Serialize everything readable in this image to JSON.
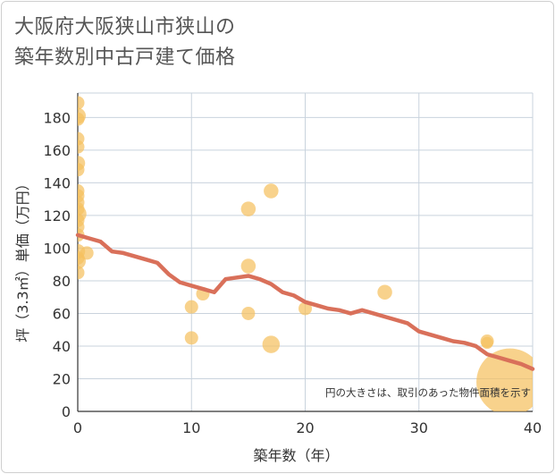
{
  "title": {
    "line1": "大阪府大阪狭山市狭山の",
    "line2": "築年数別中古戸建て価格"
  },
  "chart_data": {
    "type": "scatter",
    "title": "大阪府大阪狭山市狭山の築年数別中古戸建て価格",
    "xlabel": "築年数（年）",
    "ylabel": "坪（3.3㎡）単価（万円）",
    "xlim": [
      0,
      40
    ],
    "ylim": [
      0,
      195
    ],
    "xticks": [
      0,
      10,
      20,
      30,
      40
    ],
    "yticks": [
      0,
      20,
      40,
      60,
      80,
      100,
      120,
      140,
      160,
      180
    ],
    "grid": true,
    "note": "円の大きさは、取引のあった物件面積を示す",
    "colors": {
      "point": "#f5c060",
      "trend": "#d9705a",
      "grid": "#c9d3dd",
      "axis_text": "#333333"
    },
    "scatter": [
      {
        "x": 0,
        "y": 189,
        "s": 1
      },
      {
        "x": 0,
        "y": 181,
        "s": 1.2
      },
      {
        "x": 0,
        "y": 179,
        "s": 1
      },
      {
        "x": 0,
        "y": 167,
        "s": 1
      },
      {
        "x": 0,
        "y": 162,
        "s": 1
      },
      {
        "x": 0,
        "y": 152,
        "s": 1.1
      },
      {
        "x": 0,
        "y": 148,
        "s": 1
      },
      {
        "x": 0,
        "y": 135,
        "s": 1
      },
      {
        "x": 0,
        "y": 132,
        "s": 1
      },
      {
        "x": 0,
        "y": 128,
        "s": 1
      },
      {
        "x": 0,
        "y": 124,
        "s": 1
      },
      {
        "x": 0,
        "y": 121,
        "s": 1.3
      },
      {
        "x": 0,
        "y": 117,
        "s": 1
      },
      {
        "x": 0,
        "y": 113,
        "s": 1
      },
      {
        "x": 0,
        "y": 108,
        "s": 1
      },
      {
        "x": 0,
        "y": 98,
        "s": 1.1
      },
      {
        "x": 0,
        "y": 94,
        "s": 1
      },
      {
        "x": 0,
        "y": 92,
        "s": 1.2
      },
      {
        "x": 0,
        "y": 85,
        "s": 1
      },
      {
        "x": 0.8,
        "y": 97,
        "s": 1
      },
      {
        "x": 10,
        "y": 64,
        "s": 1
      },
      {
        "x": 10,
        "y": 45,
        "s": 1
      },
      {
        "x": 11,
        "y": 72,
        "s": 1
      },
      {
        "x": 15,
        "y": 124,
        "s": 1.1
      },
      {
        "x": 15,
        "y": 89,
        "s": 1.1
      },
      {
        "x": 15,
        "y": 60,
        "s": 1
      },
      {
        "x": 17,
        "y": 135,
        "s": 1.1
      },
      {
        "x": 17,
        "y": 41,
        "s": 1.3
      },
      {
        "x": 20,
        "y": 63,
        "s": 1
      },
      {
        "x": 27,
        "y": 73,
        "s": 1.1
      },
      {
        "x": 36,
        "y": 43,
        "s": 1
      },
      {
        "x": 36,
        "y": 42,
        "s": 0.9
      },
      {
        "x": 38,
        "y": 18,
        "s": 5
      }
    ],
    "series": [
      {
        "name": "trend",
        "x": [
          0,
          1,
          2,
          3,
          4,
          5,
          6,
          7,
          8,
          9,
          10,
          11,
          12,
          13,
          14,
          15,
          16,
          17,
          18,
          19,
          20,
          21,
          22,
          23,
          24,
          25,
          26,
          27,
          28,
          29,
          30,
          31,
          32,
          33,
          34,
          35,
          36,
          37,
          38,
          39,
          40
        ],
        "values": [
          108,
          106,
          104,
          98,
          97,
          95,
          93,
          91,
          84,
          79,
          77,
          75,
          73,
          81,
          82,
          83,
          81,
          78,
          73,
          71,
          67,
          65,
          63,
          62,
          60,
          62,
          60,
          58,
          56,
          54,
          49,
          47,
          45,
          43,
          42,
          40,
          35,
          33,
          31,
          29,
          26
        ]
      }
    ]
  }
}
